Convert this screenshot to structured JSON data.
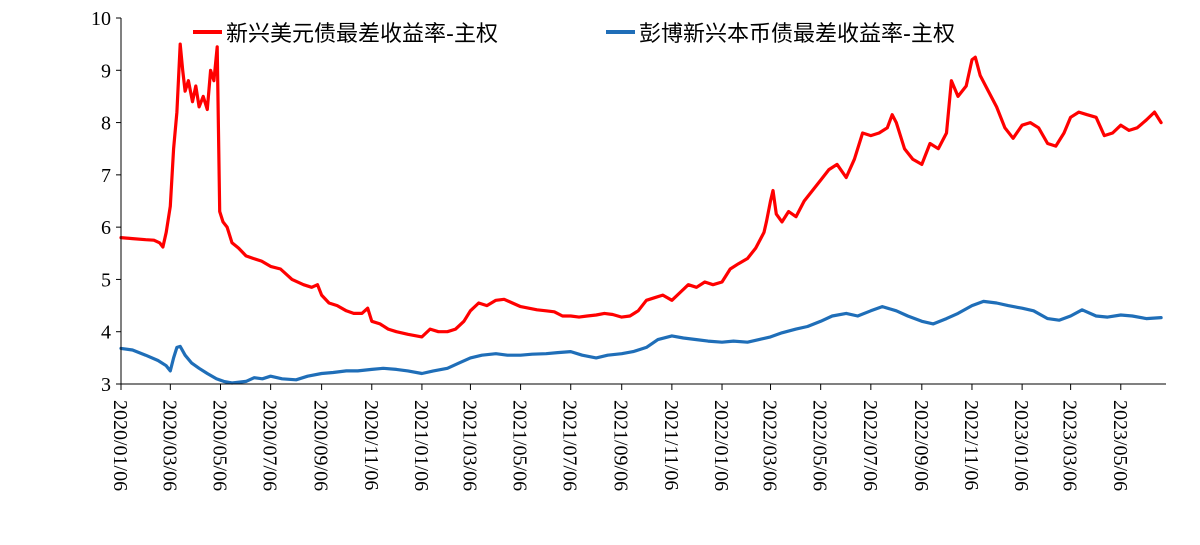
{
  "chart_data": {
    "type": "line",
    "title": "",
    "xlabel": "",
    "ylabel": "",
    "ylim": [
      3,
      10
    ],
    "yticks": [
      3,
      4,
      5,
      6,
      7,
      8,
      9,
      10
    ],
    "xlim": [
      "2020-01-06",
      "2023-06-30"
    ],
    "xticks": [
      "2020/01/06",
      "2020/03/06",
      "2020/05/06",
      "2020/07/06",
      "2020/09/06",
      "2020/11/06",
      "2021/01/06",
      "2021/03/06",
      "2021/05/06",
      "2021/07/06",
      "2021/09/06",
      "2021/11/06",
      "2022/01/06",
      "2022/03/06",
      "2022/05/06",
      "2022/07/06",
      "2022/09/06",
      "2022/11/06",
      "2023/01/06",
      "2023/03/06",
      "2023/05/06"
    ],
    "grid": false,
    "legend_position": "top",
    "series": [
      {
        "name": "新兴美元债最差收益率-主权",
        "color": "#ff0000",
        "points": [
          [
            "2020-01-06",
            5.8
          ],
          [
            "2020-01-20",
            5.78
          ],
          [
            "2020-02-05",
            5.76
          ],
          [
            "2020-02-15",
            5.75
          ],
          [
            "2020-02-22",
            5.7
          ],
          [
            "2020-02-26",
            5.62
          ],
          [
            "2020-03-01",
            5.9
          ],
          [
            "2020-03-06",
            6.4
          ],
          [
            "2020-03-10",
            7.5
          ],
          [
            "2020-03-14",
            8.2
          ],
          [
            "2020-03-18",
            9.5
          ],
          [
            "2020-03-21",
            9.0
          ],
          [
            "2020-03-24",
            8.6
          ],
          [
            "2020-03-28",
            8.8
          ],
          [
            "2020-04-02",
            8.4
          ],
          [
            "2020-04-06",
            8.7
          ],
          [
            "2020-04-10",
            8.3
          ],
          [
            "2020-04-15",
            8.5
          ],
          [
            "2020-04-20",
            8.25
          ],
          [
            "2020-04-24",
            9.0
          ],
          [
            "2020-04-28",
            8.8
          ],
          [
            "2020-05-02",
            9.45
          ],
          [
            "2020-05-05",
            6.3
          ],
          [
            "2020-05-09",
            6.1
          ],
          [
            "2020-05-14",
            6.0
          ],
          [
            "2020-05-20",
            5.7
          ],
          [
            "2020-05-28",
            5.6
          ],
          [
            "2020-06-06",
            5.45
          ],
          [
            "2020-06-15",
            5.4
          ],
          [
            "2020-06-25",
            5.35
          ],
          [
            "2020-07-06",
            5.25
          ],
          [
            "2020-07-18",
            5.2
          ],
          [
            "2020-08-01",
            5.0
          ],
          [
            "2020-08-15",
            4.9
          ],
          [
            "2020-08-25",
            4.85
          ],
          [
            "2020-09-01",
            4.9
          ],
          [
            "2020-09-06",
            4.7
          ],
          [
            "2020-09-15",
            4.55
          ],
          [
            "2020-09-25",
            4.5
          ],
          [
            "2020-10-06",
            4.4
          ],
          [
            "2020-10-15",
            4.35
          ],
          [
            "2020-10-25",
            4.35
          ],
          [
            "2020-11-01",
            4.45
          ],
          [
            "2020-11-06",
            4.2
          ],
          [
            "2020-11-16",
            4.15
          ],
          [
            "2020-11-26",
            4.05
          ],
          [
            "2020-12-06",
            4.0
          ],
          [
            "2020-12-20",
            3.95
          ],
          [
            "2021-01-06",
            3.9
          ],
          [
            "2021-01-16",
            4.05
          ],
          [
            "2021-01-26",
            4.0
          ],
          [
            "2021-02-06",
            4.0
          ],
          [
            "2021-02-16",
            4.05
          ],
          [
            "2021-02-26",
            4.2
          ],
          [
            "2021-03-06",
            4.4
          ],
          [
            "2021-03-16",
            4.55
          ],
          [
            "2021-03-26",
            4.5
          ],
          [
            "2021-04-06",
            4.6
          ],
          [
            "2021-04-16",
            4.62
          ],
          [
            "2021-04-26",
            4.55
          ],
          [
            "2021-05-06",
            4.48
          ],
          [
            "2021-05-16",
            4.45
          ],
          [
            "2021-05-26",
            4.42
          ],
          [
            "2021-06-06",
            4.4
          ],
          [
            "2021-06-16",
            4.38
          ],
          [
            "2021-06-26",
            4.3
          ],
          [
            "2021-07-06",
            4.3
          ],
          [
            "2021-07-16",
            4.28
          ],
          [
            "2021-07-26",
            4.3
          ],
          [
            "2021-08-06",
            4.32
          ],
          [
            "2021-08-16",
            4.35
          ],
          [
            "2021-08-26",
            4.33
          ],
          [
            "2021-09-06",
            4.28
          ],
          [
            "2021-09-16",
            4.3
          ],
          [
            "2021-09-26",
            4.4
          ],
          [
            "2021-10-06",
            4.6
          ],
          [
            "2021-10-16",
            4.65
          ],
          [
            "2021-10-26",
            4.7
          ],
          [
            "2021-11-06",
            4.6
          ],
          [
            "2021-11-16",
            4.75
          ],
          [
            "2021-11-26",
            4.9
          ],
          [
            "2021-12-06",
            4.85
          ],
          [
            "2021-12-16",
            4.95
          ],
          [
            "2021-12-26",
            4.9
          ],
          [
            "2022-01-06",
            4.95
          ],
          [
            "2022-01-16",
            5.2
          ],
          [
            "2022-01-26",
            5.3
          ],
          [
            "2022-02-06",
            5.4
          ],
          [
            "2022-02-16",
            5.6
          ],
          [
            "2022-02-26",
            5.9
          ],
          [
            "2022-03-01",
            6.1
          ],
          [
            "2022-03-06",
            6.5
          ],
          [
            "2022-03-09",
            6.7
          ],
          [
            "2022-03-13",
            6.25
          ],
          [
            "2022-03-20",
            6.1
          ],
          [
            "2022-03-28",
            6.3
          ],
          [
            "2022-04-06",
            6.2
          ],
          [
            "2022-04-16",
            6.5
          ],
          [
            "2022-04-26",
            6.7
          ],
          [
            "2022-05-06",
            6.9
          ],
          [
            "2022-05-16",
            7.1
          ],
          [
            "2022-05-26",
            7.2
          ],
          [
            "2022-06-06",
            6.95
          ],
          [
            "2022-06-16",
            7.3
          ],
          [
            "2022-06-26",
            7.8
          ],
          [
            "2022-07-06",
            7.75
          ],
          [
            "2022-07-16",
            7.8
          ],
          [
            "2022-07-26",
            7.9
          ],
          [
            "2022-08-01",
            8.15
          ],
          [
            "2022-08-06",
            8.0
          ],
          [
            "2022-08-16",
            7.5
          ],
          [
            "2022-08-26",
            7.3
          ],
          [
            "2022-09-06",
            7.2
          ],
          [
            "2022-09-16",
            7.6
          ],
          [
            "2022-09-26",
            7.5
          ],
          [
            "2022-10-06",
            7.8
          ],
          [
            "2022-10-12",
            8.8
          ],
          [
            "2022-10-20",
            8.5
          ],
          [
            "2022-10-30",
            8.7
          ],
          [
            "2022-11-06",
            9.2
          ],
          [
            "2022-11-10",
            9.25
          ],
          [
            "2022-11-16",
            8.9
          ],
          [
            "2022-11-26",
            8.6
          ],
          [
            "2022-12-06",
            8.3
          ],
          [
            "2022-12-16",
            7.9
          ],
          [
            "2022-12-26",
            7.7
          ],
          [
            "2023-01-06",
            7.95
          ],
          [
            "2023-01-16",
            8.0
          ],
          [
            "2023-01-26",
            7.9
          ],
          [
            "2023-02-06",
            7.6
          ],
          [
            "2023-02-16",
            7.55
          ],
          [
            "2023-02-26",
            7.8
          ],
          [
            "2023-03-06",
            8.1
          ],
          [
            "2023-03-16",
            8.2
          ],
          [
            "2023-03-26",
            8.15
          ],
          [
            "2023-04-06",
            8.1
          ],
          [
            "2023-04-16",
            7.75
          ],
          [
            "2023-04-26",
            7.8
          ],
          [
            "2023-05-06",
            7.95
          ],
          [
            "2023-05-16",
            7.85
          ],
          [
            "2023-05-26",
            7.9
          ],
          [
            "2023-06-06",
            8.05
          ],
          [
            "2023-06-16",
            8.2
          ],
          [
            "2023-06-24",
            8.0
          ]
        ]
      },
      {
        "name": "彭博新兴本币债最差收益率-主权",
        "color": "#1f6eb8",
        "points": [
          [
            "2020-01-06",
            3.68
          ],
          [
            "2020-01-20",
            3.65
          ],
          [
            "2020-02-05",
            3.55
          ],
          [
            "2020-02-20",
            3.45
          ],
          [
            "2020-03-01",
            3.35
          ],
          [
            "2020-03-06",
            3.25
          ],
          [
            "2020-03-10",
            3.5
          ],
          [
            "2020-03-14",
            3.7
          ],
          [
            "2020-03-18",
            3.72
          ],
          [
            "2020-03-24",
            3.55
          ],
          [
            "2020-04-01",
            3.4
          ],
          [
            "2020-04-10",
            3.3
          ],
          [
            "2020-04-20",
            3.2
          ],
          [
            "2020-05-01",
            3.1
          ],
          [
            "2020-05-10",
            3.05
          ],
          [
            "2020-05-20",
            3.02
          ],
          [
            "2020-06-06",
            3.05
          ],
          [
            "2020-06-16",
            3.12
          ],
          [
            "2020-06-26",
            3.1
          ],
          [
            "2020-07-06",
            3.15
          ],
          [
            "2020-07-20",
            3.1
          ],
          [
            "2020-08-06",
            3.08
          ],
          [
            "2020-08-20",
            3.15
          ],
          [
            "2020-09-06",
            3.2
          ],
          [
            "2020-09-20",
            3.22
          ],
          [
            "2020-10-06",
            3.25
          ],
          [
            "2020-10-20",
            3.25
          ],
          [
            "2020-11-06",
            3.28
          ],
          [
            "2020-11-20",
            3.3
          ],
          [
            "2020-12-06",
            3.28
          ],
          [
            "2020-12-20",
            3.25
          ],
          [
            "2021-01-06",
            3.2
          ],
          [
            "2021-01-20",
            3.25
          ],
          [
            "2021-02-06",
            3.3
          ],
          [
            "2021-02-20",
            3.4
          ],
          [
            "2021-03-06",
            3.5
          ],
          [
            "2021-03-20",
            3.55
          ],
          [
            "2021-04-06",
            3.58
          ],
          [
            "2021-04-20",
            3.55
          ],
          [
            "2021-05-06",
            3.55
          ],
          [
            "2021-05-20",
            3.57
          ],
          [
            "2021-06-06",
            3.58
          ],
          [
            "2021-06-20",
            3.6
          ],
          [
            "2021-07-06",
            3.62
          ],
          [
            "2021-07-20",
            3.55
          ],
          [
            "2021-08-06",
            3.5
          ],
          [
            "2021-08-20",
            3.55
          ],
          [
            "2021-09-06",
            3.58
          ],
          [
            "2021-09-20",
            3.62
          ],
          [
            "2021-10-06",
            3.7
          ],
          [
            "2021-10-20",
            3.85
          ],
          [
            "2021-11-06",
            3.92
          ],
          [
            "2021-11-20",
            3.88
          ],
          [
            "2021-12-06",
            3.85
          ],
          [
            "2021-12-20",
            3.82
          ],
          [
            "2022-01-06",
            3.8
          ],
          [
            "2022-01-20",
            3.82
          ],
          [
            "2022-02-06",
            3.8
          ],
          [
            "2022-02-20",
            3.85
          ],
          [
            "2022-03-06",
            3.9
          ],
          [
            "2022-03-20",
            3.98
          ],
          [
            "2022-04-06",
            4.05
          ],
          [
            "2022-04-20",
            4.1
          ],
          [
            "2022-05-06",
            4.2
          ],
          [
            "2022-05-20",
            4.3
          ],
          [
            "2022-06-06",
            4.35
          ],
          [
            "2022-06-20",
            4.3
          ],
          [
            "2022-07-06",
            4.4
          ],
          [
            "2022-07-20",
            4.48
          ],
          [
            "2022-08-06",
            4.4
          ],
          [
            "2022-08-20",
            4.3
          ],
          [
            "2022-09-06",
            4.2
          ],
          [
            "2022-09-20",
            4.15
          ],
          [
            "2022-10-06",
            4.25
          ],
          [
            "2022-10-20",
            4.35
          ],
          [
            "2022-11-06",
            4.5
          ],
          [
            "2022-11-20",
            4.58
          ],
          [
            "2022-12-06",
            4.55
          ],
          [
            "2022-12-20",
            4.5
          ],
          [
            "2023-01-06",
            4.45
          ],
          [
            "2023-01-20",
            4.4
          ],
          [
            "2023-02-06",
            4.25
          ],
          [
            "2023-02-20",
            4.22
          ],
          [
            "2023-03-06",
            4.3
          ],
          [
            "2023-03-20",
            4.42
          ],
          [
            "2023-04-06",
            4.3
          ],
          [
            "2023-04-20",
            4.28
          ],
          [
            "2023-05-06",
            4.32
          ],
          [
            "2023-05-20",
            4.3
          ],
          [
            "2023-06-06",
            4.25
          ],
          [
            "2023-06-24",
            4.27
          ]
        ]
      }
    ]
  }
}
